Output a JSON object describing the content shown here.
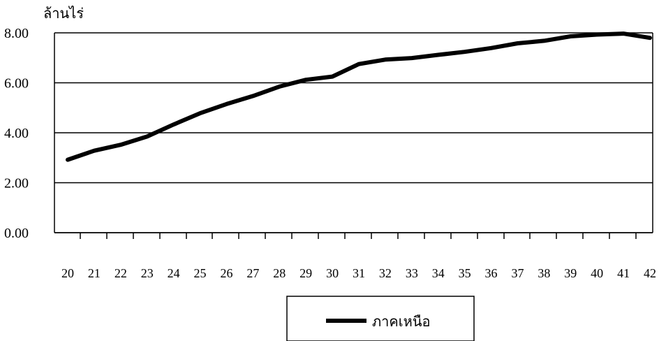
{
  "chart_data": {
    "type": "line",
    "title": "",
    "xlabel": "",
    "ylabel": "ล้านไร่",
    "categories": [
      "20",
      "21",
      "22",
      "23",
      "24",
      "25",
      "26",
      "27",
      "28",
      "29",
      "30",
      "31",
      "32",
      "33",
      "34",
      "35",
      "36",
      "37",
      "38",
      "39",
      "40",
      "41",
      "42"
    ],
    "series": [
      {
        "name": "ภาคเหนือ",
        "color": "#000000",
        "values": [
          2.92,
          3.28,
          3.52,
          3.85,
          4.33,
          4.78,
          5.15,
          5.47,
          5.85,
          6.12,
          6.25,
          6.75,
          6.93,
          6.99,
          7.12,
          7.24,
          7.39,
          7.58,
          7.68,
          7.86,
          7.93,
          7.97,
          7.8
        ]
      }
    ],
    "ylim": [
      0,
      8
    ],
    "yticks": [
      "0.00",
      "2.00",
      "4.00",
      "6.00",
      "8.00"
    ],
    "grid": true,
    "legend_position": "bottom-center"
  }
}
